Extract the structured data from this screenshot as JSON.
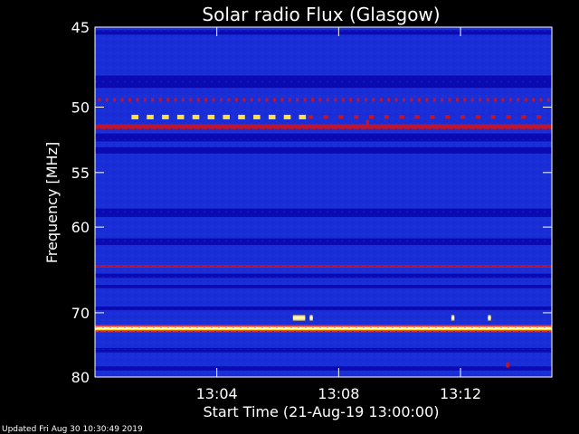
{
  "chart_data": {
    "type": "heatmap",
    "title": "Solar radio Flux (Glasgow)",
    "xlabel": "Start Time (21-Aug-19 13:00:00)",
    "ylabel": "Frequency [MHz]",
    "footer": "Updated Fri Aug 30 10:30:49 2019",
    "x_unit": "minutes after 13:00:00",
    "xlim": [
      0,
      15
    ],
    "ylim": [
      45,
      80
    ],
    "y_scale": "reciprocal",
    "x_ticks": [
      {
        "value": 4,
        "label": "13:04"
      },
      {
        "value": 8,
        "label": "13:08"
      },
      {
        "value": 12,
        "label": "13:12"
      }
    ],
    "y_ticks": [
      {
        "value": 45,
        "label": "45"
      },
      {
        "value": 50,
        "label": "50"
      },
      {
        "value": 55,
        "label": "55"
      },
      {
        "value": 60,
        "label": "60"
      },
      {
        "value": 70,
        "label": "70"
      },
      {
        "value": 80,
        "label": "80"
      }
    ],
    "background_color": "#1a2ed8",
    "colors": {
      "low": "#0a0ab0",
      "mid": "#1a2ed8",
      "high": "#c0142a",
      "peak": "#ffe040",
      "max": "#ffffff"
    },
    "bands": [
      {
        "freq": 45.3,
        "width": 0.25,
        "level": "low"
      },
      {
        "freq": 48.3,
        "width": 0.8,
        "level": "low"
      },
      {
        "freq": 51.4,
        "width": 0.35,
        "level": "high"
      },
      {
        "freq": 52.2,
        "width": 0.6,
        "level": "low"
      },
      {
        "freq": 53.2,
        "width": 0.5,
        "level": "low"
      },
      {
        "freq": 58.6,
        "width": 0.8,
        "level": "low"
      },
      {
        "freq": 61.5,
        "width": 0.7,
        "level": "low"
      },
      {
        "freq": 64.2,
        "width": 0.3,
        "level": "high"
      },
      {
        "freq": 65.3,
        "width": 0.5,
        "level": "low"
      },
      {
        "freq": 66.6,
        "width": 0.4,
        "level": "low"
      },
      {
        "freq": 69.4,
        "width": 0.5,
        "level": "low"
      },
      {
        "freq": 72.2,
        "width": 0.55,
        "level": "peak"
      },
      {
        "freq": 75.5,
        "width": 0.7,
        "level": "low"
      },
      {
        "freq": 78.5,
        "width": 0.7,
        "level": "low"
      }
    ],
    "pulse_rows": [
      {
        "freq": 49.5,
        "level": "high",
        "x_start": 0.1,
        "x_end": 14.9,
        "period": 0.25,
        "duty": 0.35
      },
      {
        "freq": 50.7,
        "level": "peak",
        "x_start": 1.2,
        "x_end": 6.8,
        "period": 0.5,
        "duty": 0.45
      },
      {
        "freq": 50.7,
        "level": "high",
        "x_start": 7.0,
        "x_end": 14.9,
        "period": 0.5,
        "duty": 0.3
      }
    ],
    "bursts": [
      {
        "x": 6.5,
        "x_end": 6.9,
        "freq": 70.7,
        "level": "peak"
      },
      {
        "x": 7.05,
        "x_end": 7.15,
        "freq": 70.7,
        "level": "peak"
      },
      {
        "x": 11.7,
        "x_end": 11.8,
        "freq": 70.7,
        "level": "peak"
      },
      {
        "x": 12.9,
        "x_end": 13.0,
        "freq": 70.7,
        "level": "peak"
      },
      {
        "x": 13.5,
        "x_end": 13.6,
        "freq": 77.9,
        "level": "high"
      },
      {
        "x": 8.9,
        "x_end": 9.0,
        "freq": 51.1,
        "level": "high"
      }
    ]
  }
}
